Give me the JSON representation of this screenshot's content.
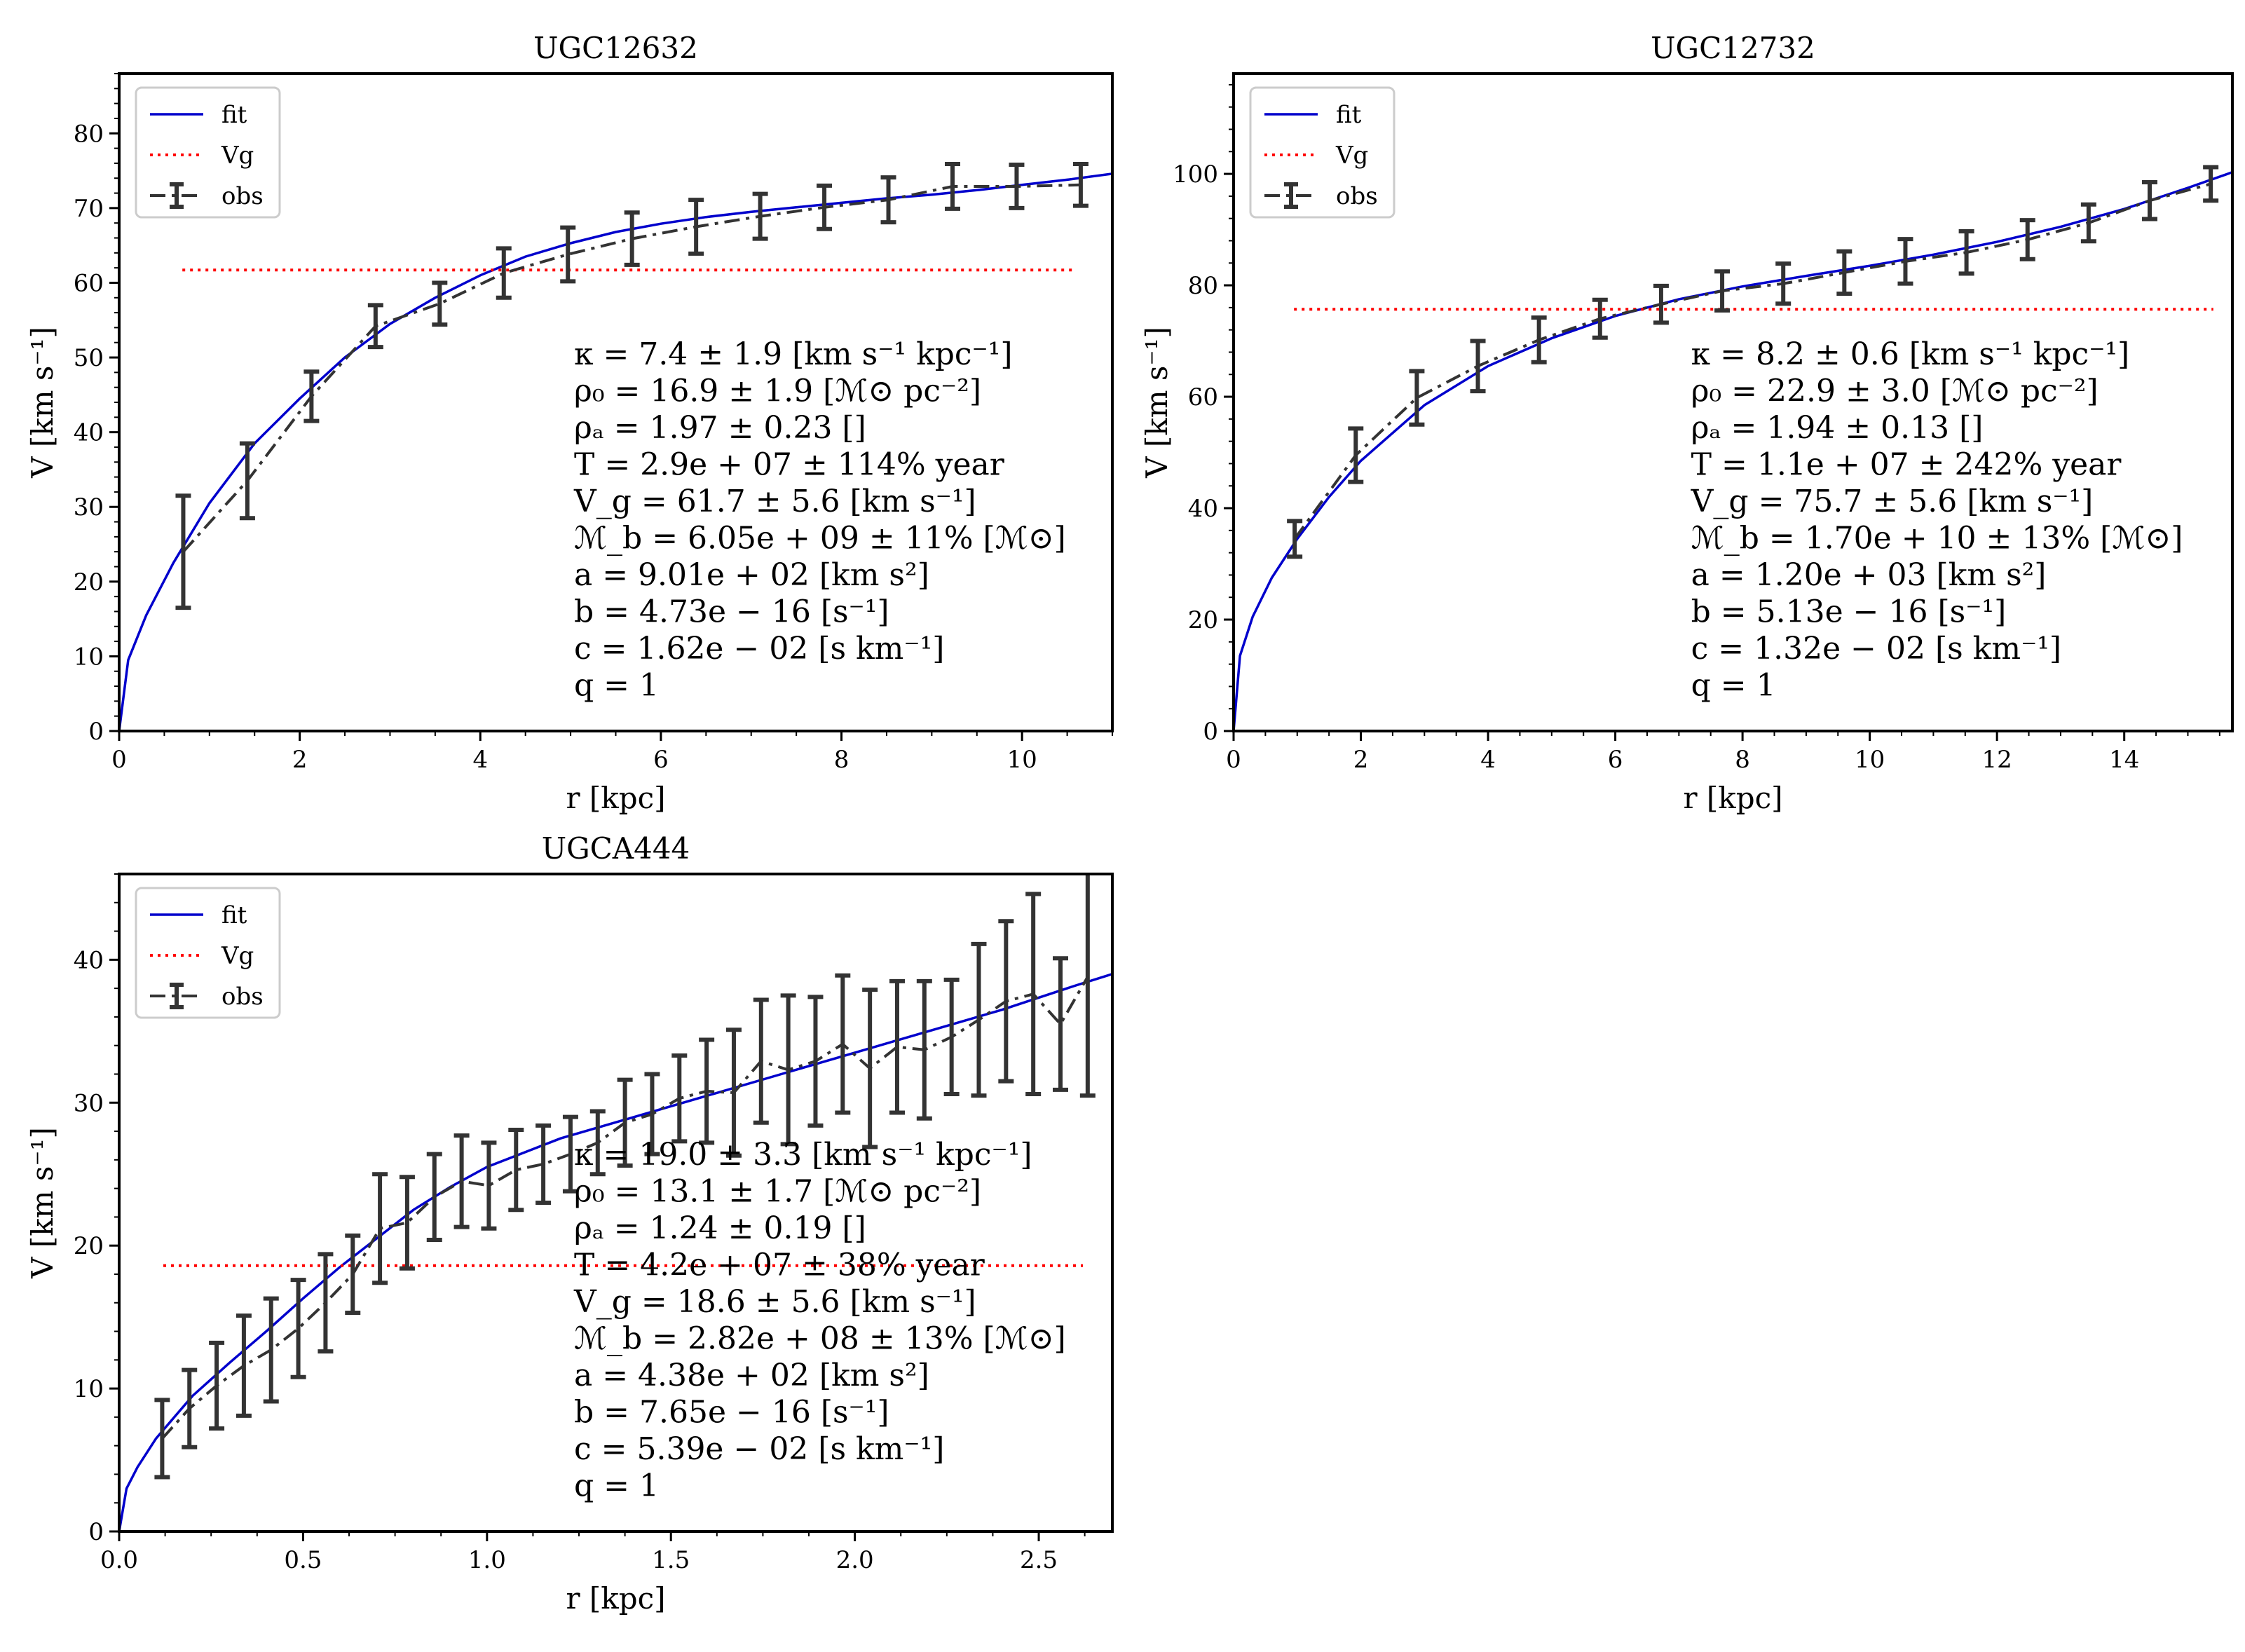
{
  "chart_data": [
    {
      "type": "line",
      "title": "UGC12632",
      "xlabel": "r [kpc]",
      "ylabel": "V [km s⁻¹]",
      "xlim": [
        0,
        11
      ],
      "ylim": [
        0,
        88
      ],
      "xticks": [
        0,
        2,
        4,
        6,
        8,
        10
      ],
      "yticks": [
        0,
        10,
        20,
        30,
        40,
        50,
        60,
        70,
        80
      ],
      "xtick_labels": [
        "0",
        "2",
        "4",
        "6",
        "8",
        "10"
      ],
      "ytick_labels": [
        "0",
        "10",
        "20",
        "30",
        "40",
        "50",
        "60",
        "70",
        "80"
      ],
      "legend": {
        "location": "top-left",
        "entries": [
          "fit",
          "Vg",
          "obs"
        ]
      },
      "series": [
        {
          "name": "fit",
          "color": "#0000cc",
          "style": "solid",
          "x": [
            0,
            0.1,
            0.3,
            0.6,
            1.0,
            1.5,
            2.0,
            2.5,
            3.0,
            3.5,
            4.0,
            4.5,
            5.0,
            5.5,
            6.0,
            6.5,
            7.0,
            7.5,
            8.0,
            8.5,
            9.0,
            9.5,
            10.0,
            10.5,
            11.0
          ],
          "y": [
            0,
            9.5,
            15.5,
            22.5,
            30.5,
            38.5,
            44.5,
            50.0,
            54.5,
            58.0,
            61.0,
            63.5,
            65.3,
            66.8,
            67.9,
            68.8,
            69.5,
            70.1,
            70.7,
            71.3,
            71.8,
            72.4,
            73.1,
            73.8,
            74.6
          ]
        },
        {
          "name": "Vg",
          "color": "#ff0000",
          "style": "dotted",
          "x": [
            0.7,
            10.6
          ],
          "y": [
            61.7,
            61.7
          ]
        },
        {
          "name": "obs",
          "color": "#333333",
          "style": "dashdot",
          "x": [
            0.71,
            1.42,
            2.13,
            2.84,
            3.55,
            4.26,
            4.97,
            5.68,
            6.39,
            7.1,
            7.81,
            8.52,
            9.23,
            9.94,
            10.65
          ],
          "y": [
            24.0,
            33.5,
            44.8,
            54.2,
            57.2,
            61.3,
            63.8,
            65.9,
            67.5,
            68.9,
            70.1,
            71.1,
            72.9,
            72.9,
            73.1
          ],
          "err": [
            7.5,
            5.0,
            3.3,
            2.8,
            2.8,
            3.3,
            3.6,
            3.5,
            3.6,
            3.0,
            2.9,
            3.0,
            3.0,
            2.9,
            2.8
          ]
        }
      ],
      "annotations": [
        "κ = 7.4 ± 1.9 [km s⁻¹ kpc⁻¹]",
        "ρ₀ = 16.9 ± 1.9 [ℳ⊙ pc⁻²]",
        "ρₐ = 1.97 ± 0.23 []",
        "T = 2.9e + 07 ± 114% year",
        "V_g = 61.7 ± 5.6 [km s⁻¹]",
        "ℳ_b = 6.05e + 09 ± 11% [ℳ⊙]",
        "a = 9.01e + 02 [km s²]",
        "b = 4.73e − 16 [s⁻¹]",
        "c = 1.62e − 02 [s km⁻¹]",
        "q = 1"
      ]
    },
    {
      "type": "line",
      "title": "UGC12732",
      "xlabel": "r [kpc]",
      "ylabel": "V [km s⁻¹]",
      "xlim": [
        0,
        15.7
      ],
      "ylim": [
        0,
        118
      ],
      "xticks": [
        0,
        2,
        4,
        6,
        8,
        10,
        12,
        14
      ],
      "yticks": [
        0,
        20,
        40,
        60,
        80,
        100
      ],
      "xtick_labels": [
        "0",
        "2",
        "4",
        "6",
        "8",
        "10",
        "12",
        "14"
      ],
      "ytick_labels": [
        "0",
        "20",
        "40",
        "60",
        "80",
        "100"
      ],
      "legend": {
        "location": "top-left",
        "entries": [
          "fit",
          "Vg",
          "obs"
        ]
      },
      "series": [
        {
          "name": "fit",
          "color": "#0000cc",
          "style": "solid",
          "x": [
            0,
            0.1,
            0.3,
            0.6,
            1.0,
            1.5,
            2.0,
            3.0,
            4.0,
            5.0,
            6.0,
            7.0,
            8.0,
            9.0,
            10.0,
            11.0,
            12.0,
            13.0,
            14.0,
            15.0,
            15.7
          ],
          "y": [
            0,
            13.5,
            20.5,
            27.5,
            34.5,
            42.0,
            48.5,
            58.5,
            65.5,
            70.5,
            74.5,
            77.5,
            79.8,
            81.7,
            83.5,
            85.5,
            87.8,
            90.5,
            93.7,
            97.5,
            100.3
          ]
        },
        {
          "name": "Vg",
          "color": "#ff0000",
          "style": "dotted",
          "x": [
            0.95,
            15.4
          ],
          "y": [
            75.7,
            75.7
          ]
        },
        {
          "name": "obs",
          "color": "#333333",
          "style": "dashdot",
          "x": [
            0.96,
            1.92,
            2.88,
            3.84,
            4.8,
            5.76,
            6.72,
            7.68,
            8.64,
            9.6,
            10.56,
            11.52,
            12.48,
            13.44,
            14.4,
            15.36
          ],
          "y": [
            34.5,
            49.5,
            59.8,
            65.5,
            70.2,
            74.0,
            76.6,
            79.0,
            80.3,
            82.3,
            84.3,
            85.9,
            88.2,
            91.2,
            95.2,
            98.2
          ],
          "err": [
            3.2,
            4.8,
            4.8,
            4.5,
            4.0,
            3.4,
            3.3,
            3.5,
            3.6,
            3.8,
            4.0,
            3.8,
            3.5,
            3.3,
            3.3,
            3.0
          ]
        }
      ],
      "annotations": [
        "κ = 8.2 ± 0.6 [km s⁻¹ kpc⁻¹]",
        "ρ₀ = 22.9 ± 3.0 [ℳ⊙ pc⁻²]",
        "ρₐ = 1.94 ± 0.13 []",
        "T = 1.1e + 07 ± 242% year",
        "V_g = 75.7 ± 5.6 [km s⁻¹]",
        "ℳ_b = 1.70e + 10 ± 13% [ℳ⊙]",
        "a = 1.20e + 03 [km s²]",
        "b = 5.13e − 16 [s⁻¹]",
        "c = 1.32e − 02 [s km⁻¹]",
        "q = 1"
      ]
    },
    {
      "type": "line",
      "title": "UGCA444",
      "xlabel": "r [kpc]",
      "ylabel": "V [km s⁻¹]",
      "xlim": [
        0,
        2.7
      ],
      "ylim": [
        0,
        46
      ],
      "xticks": [
        0,
        0.5,
        1.0,
        1.5,
        2.0,
        2.5
      ],
      "yticks": [
        0,
        10,
        20,
        30,
        40
      ],
      "xtick_labels": [
        "0.0",
        "0.5",
        "1.0",
        "1.5",
        "2.0",
        "2.5"
      ],
      "ytick_labels": [
        "0",
        "10",
        "20",
        "30",
        "40"
      ],
      "legend": {
        "location": "top-left",
        "entries": [
          "fit",
          "Vg",
          "obs"
        ]
      },
      "series": [
        {
          "name": "fit",
          "color": "#0000cc",
          "style": "solid",
          "x": [
            0,
            0.02,
            0.05,
            0.1,
            0.15,
            0.2,
            0.3,
            0.4,
            0.5,
            0.6,
            0.7,
            0.8,
            0.9,
            1.0,
            1.2,
            1.4,
            1.6,
            1.8,
            2.0,
            2.2,
            2.4,
            2.6,
            2.7
          ],
          "y": [
            0,
            3.0,
            4.5,
            6.5,
            8.0,
            9.5,
            11.8,
            14.0,
            16.3,
            18.5,
            20.5,
            22.5,
            24.1,
            25.5,
            27.5,
            29.0,
            30.5,
            32.0,
            33.5,
            35.0,
            36.5,
            38.2,
            39.0
          ]
        },
        {
          "name": "Vg",
          "color": "#ff0000",
          "style": "dotted",
          "x": [
            0.12,
            2.62
          ],
          "y": [
            18.6,
            18.6
          ]
        },
        {
          "name": "obs",
          "color": "#333333",
          "style": "dashdot",
          "x": [
            0.117,
            0.191,
            0.265,
            0.339,
            0.413,
            0.487,
            0.561,
            0.635,
            0.709,
            0.783,
            0.857,
            0.931,
            1.005,
            1.079,
            1.153,
            1.227,
            1.301,
            1.375,
            1.449,
            1.523,
            1.597,
            1.671,
            1.745,
            1.819,
            1.893,
            1.967,
            2.041,
            2.115,
            2.189,
            2.263,
            2.337,
            2.411,
            2.485,
            2.559,
            2.633
          ],
          "y": [
            6.5,
            8.6,
            10.2,
            11.6,
            12.7,
            14.2,
            16.0,
            18.0,
            21.2,
            21.6,
            23.4,
            24.5,
            24.2,
            25.3,
            25.7,
            26.4,
            27.2,
            28.6,
            29.2,
            30.3,
            30.8,
            30.7,
            32.9,
            32.3,
            32.9,
            34.1,
            32.4,
            33.9,
            33.7,
            34.6,
            35.8,
            37.1,
            37.6,
            35.5,
            38.8
          ],
          "err": [
            2.7,
            2.7,
            3.0,
            3.5,
            3.6,
            3.4,
            3.4,
            2.7,
            3.8,
            3.2,
            3.0,
            3.2,
            3.0,
            2.8,
            2.7,
            2.6,
            2.2,
            3.0,
            2.8,
            3.0,
            3.6,
            4.4,
            4.3,
            5.2,
            4.5,
            4.8,
            5.5,
            4.6,
            4.8,
            4.0,
            5.3,
            5.6,
            7.0,
            4.6,
            8.3
          ]
        }
      ],
      "annotations": [
        "κ = 19.0 ± 3.3 [km s⁻¹ kpc⁻¹]",
        "ρ₀ = 13.1 ± 1.7 [ℳ⊙ pc⁻²]",
        "ρₐ = 1.24 ± 0.19 []",
        "T = 4.2e + 07 ± 38% year",
        "V_g = 18.6 ± 5.6 [km s⁻¹]",
        "ℳ_b = 2.82e + 08 ± 13% [ℳ⊙]",
        "a = 4.38e + 02 [km s²]",
        "b = 7.65e − 16 [s⁻¹]",
        "c = 5.39e − 02 [s km⁻¹]",
        "q = 1"
      ]
    }
  ]
}
